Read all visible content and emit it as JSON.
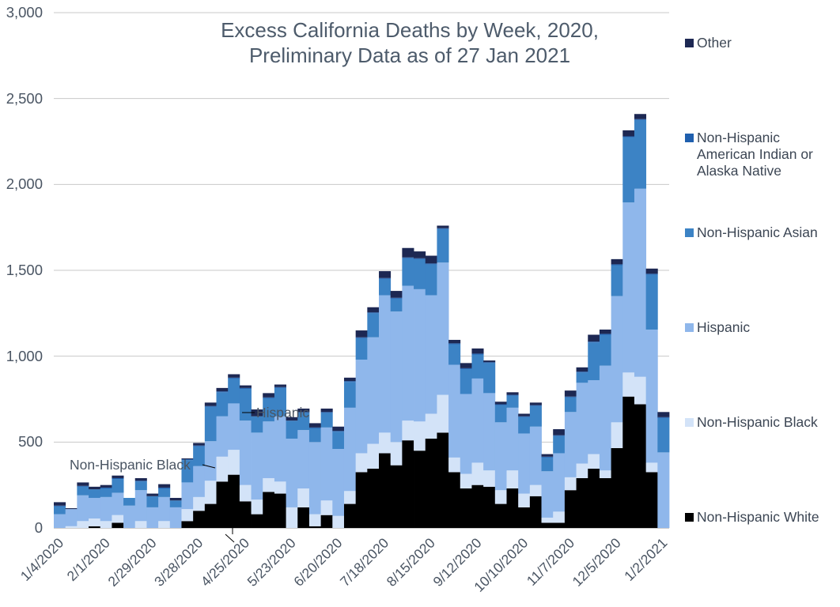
{
  "chart_data": {
    "type": "bar",
    "stacked": true,
    "title": "Excess California Deaths by Week, 2020,",
    "subtitle": "Preliminary Data as of 27 Jan 2021",
    "xlabel": "",
    "ylabel": "",
    "ylim": [
      0,
      3000
    ],
    "yticks": [
      "0",
      "500",
      "1,000",
      "1,500",
      "2,000",
      "2,500",
      "3,000"
    ],
    "ytick_values": [
      0,
      500,
      1000,
      1500,
      2000,
      2500,
      3000
    ],
    "xtick_labels": [
      "1/4/2020",
      "2/1/2020",
      "2/29/2020",
      "3/28/2020",
      "4/25/2020",
      "5/23/2020",
      "6/20/2020",
      "7/18/2020",
      "8/15/2020",
      "9/12/2020",
      "10/10/2020",
      "11/7/2020",
      "12/5/2020",
      "1/2/2021"
    ],
    "grid": true,
    "legend_position": "right",
    "series": [
      {
        "name": "Non-Hispanic White",
        "color": "#000000",
        "values": [
          0,
          0,
          0,
          10,
          0,
          30,
          0,
          0,
          0,
          0,
          0,
          40,
          100,
          140,
          270,
          310,
          155,
          80,
          210,
          200,
          0,
          120,
          10,
          75,
          0,
          140,
          325,
          345,
          435,
          365,
          510,
          450,
          520,
          555,
          325,
          230,
          250,
          240,
          140,
          230,
          120,
          185,
          30,
          30,
          220,
          290,
          345,
          290,
          465,
          765,
          720,
          325,
          0
        ]
      },
      {
        "name": "Non-Hispanic Black",
        "color": "#d3e3f8",
        "values": [
          0,
          10,
          40,
          45,
          40,
          45,
          0,
          40,
          0,
          40,
          0,
          70,
          80,
          135,
          145,
          145,
          95,
          85,
          80,
          70,
          120,
          110,
          70,
          85,
          70,
          75,
          110,
          145,
          120,
          135,
          115,
          170,
          145,
          220,
          85,
          85,
          130,
          95,
          80,
          105,
          80,
          65,
          30,
          65,
          75,
          85,
          85,
          45,
          150,
          140,
          160,
          55,
          0
        ]
      },
      {
        "name": "Hispanic",
        "color": "#8fb7eb",
        "values": [
          80,
          100,
          150,
          120,
          140,
          130,
          130,
          180,
          120,
          140,
          120,
          155,
          180,
          230,
          235,
          270,
          375,
          390,
          330,
          380,
          400,
          340,
          420,
          425,
          390,
          485,
          545,
          620,
          800,
          760,
          785,
          770,
          690,
          770,
          540,
          465,
          490,
          450,
          395,
          365,
          350,
          340,
          270,
          340,
          380,
          470,
          430,
          610,
          735,
          990,
          1095,
          775,
          440
        ]
      },
      {
        "name": "Non-Hispanic Asian",
        "color": "#3c83c5",
        "values": [
          45,
          0,
          50,
          50,
          50,
          80,
          45,
          50,
          65,
          50,
          40,
          130,
          115,
          200,
          140,
          145,
          185,
          95,
          135,
          165,
          105,
          100,
          80,
          85,
          100,
          150,
          125,
          140,
          95,
          75,
          160,
          175,
          180,
          195,
          120,
          145,
          140,
          175,
          100,
          70,
          95,
          120,
          80,
          100,
          85,
          60,
          220,
          180,
          180,
          380,
          400,
          320,
          200
        ]
      },
      {
        "name": "Non-Hispanic American Indian or Alaska Native",
        "color": "#1f5fae",
        "values": [
          5,
          0,
          5,
          0,
          5,
          5,
          0,
          5,
          0,
          5,
          0,
          5,
          5,
          5,
          5,
          5,
          5,
          0,
          5,
          5,
          0,
          5,
          5,
          5,
          5,
          5,
          5,
          5,
          5,
          5,
          5,
          5,
          5,
          5,
          5,
          5,
          5,
          5,
          5,
          5,
          5,
          5,
          5,
          5,
          5,
          5,
          5,
          5,
          5,
          5,
          5,
          5,
          5
        ]
      },
      {
        "name": "Other",
        "color": "#1d2853",
        "values": [
          20,
          5,
          20,
          15,
          15,
          15,
          0,
          15,
          15,
          20,
          15,
          5,
          15,
          20,
          20,
          20,
          15,
          40,
          25,
          15,
          20,
          20,
          25,
          20,
          25,
          20,
          40,
          30,
          40,
          40,
          55,
          40,
          45,
          15,
          20,
          30,
          30,
          10,
          15,
          15,
          15,
          15,
          15,
          35,
          35,
          25,
          40,
          25,
          30,
          35,
          30,
          30,
          30
        ]
      }
    ]
  },
  "annotations": {
    "hispanic_label": "Hispanic",
    "nhb_label": "Non-Hispanic Black"
  }
}
